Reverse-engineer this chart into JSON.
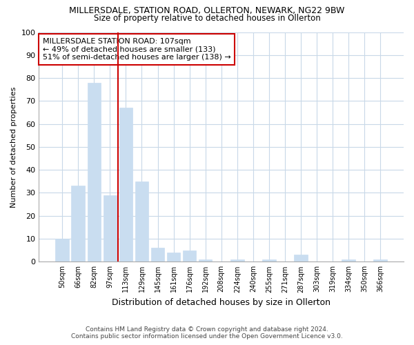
{
  "title": "MILLERSDALE, STATION ROAD, OLLERTON, NEWARK, NG22 9BW",
  "subtitle": "Size of property relative to detached houses in Ollerton",
  "xlabel": "Distribution of detached houses by size in Ollerton",
  "ylabel": "Number of detached properties",
  "bar_labels": [
    "50sqm",
    "66sqm",
    "82sqm",
    "97sqm",
    "113sqm",
    "129sqm",
    "145sqm",
    "161sqm",
    "176sqm",
    "192sqm",
    "208sqm",
    "224sqm",
    "240sqm",
    "255sqm",
    "271sqm",
    "287sqm",
    "303sqm",
    "319sqm",
    "334sqm",
    "350sqm",
    "366sqm"
  ],
  "bar_values": [
    10,
    33,
    78,
    29,
    67,
    35,
    6,
    4,
    5,
    1,
    0,
    1,
    0,
    1,
    0,
    3,
    0,
    0,
    1,
    0,
    1
  ],
  "bar_color": "#c9ddf0",
  "redline_x": 3.5,
  "annotation_title": "MILLERSDALE STATION ROAD: 107sqm",
  "annotation_line1": "← 49% of detached houses are smaller (133)",
  "annotation_line2": "51% of semi-detached houses are larger (138) →",
  "ylim": [
    0,
    100
  ],
  "yticks": [
    0,
    10,
    20,
    30,
    40,
    50,
    60,
    70,
    80,
    90,
    100
  ],
  "footer1": "Contains HM Land Registry data © Crown copyright and database right 2024.",
  "footer2": "Contains public sector information licensed under the Open Government Licence v3.0.",
  "bg_color": "#ffffff",
  "grid_color": "#c8d8e8",
  "annotation_box_edge": "#cc0000",
  "redline_color": "#cc0000"
}
